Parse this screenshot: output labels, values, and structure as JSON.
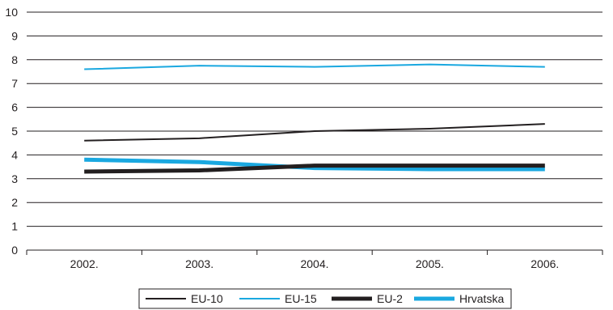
{
  "chart_data": {
    "type": "line",
    "title": "",
    "xlabel": "",
    "ylabel": "",
    "categories": [
      "2002.",
      "2003.",
      "2004.",
      "2005.",
      "2006."
    ],
    "ylim": [
      0,
      10
    ],
    "yticks": [
      "0",
      "1",
      "2",
      "3",
      "4",
      "5",
      "6",
      "7",
      "8",
      "9",
      "10"
    ],
    "grid": true,
    "legend_position": "bottom",
    "series": [
      {
        "name": "EU-10",
        "values": [
          4.6,
          4.7,
          5.0,
          5.1,
          5.3
        ],
        "color": "#231f20",
        "weight": "thin"
      },
      {
        "name": "EU-15",
        "values": [
          7.6,
          7.75,
          7.7,
          7.8,
          7.7
        ],
        "color": "#1aa8e0",
        "weight": "thin"
      },
      {
        "name": "EU-2",
        "values": [
          3.3,
          3.35,
          3.55,
          3.55,
          3.55
        ],
        "color": "#231f20",
        "weight": "thick"
      },
      {
        "name": "Hrvatska",
        "values": [
          3.8,
          3.7,
          3.45,
          3.4,
          3.4
        ],
        "color": "#1aa8e0",
        "weight": "thick"
      }
    ]
  }
}
